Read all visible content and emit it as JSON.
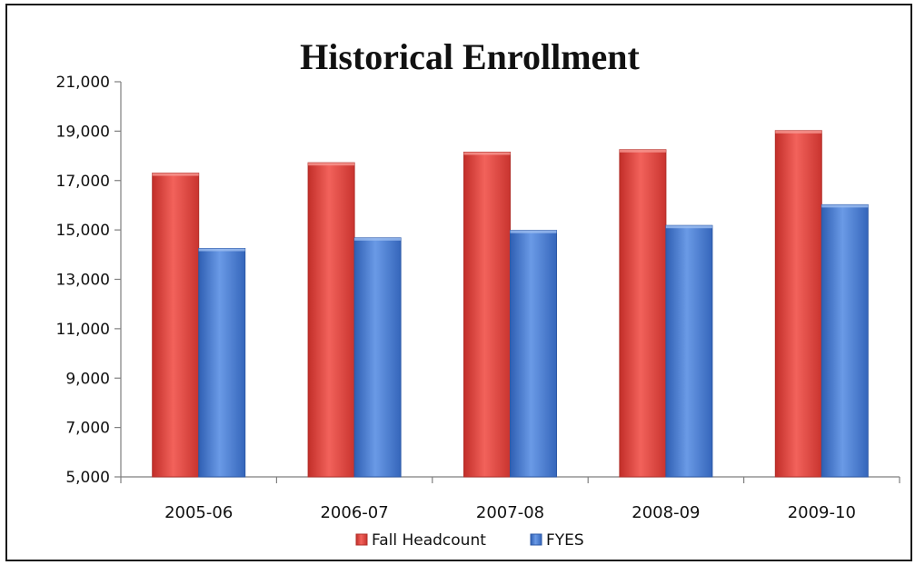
{
  "chart_data": {
    "type": "bar",
    "title": "Historical Enrollment",
    "xlabel": "",
    "ylabel": "",
    "categories": [
      "2005-06",
      "2006-07",
      "2007-08",
      "2008-09",
      "2009-10"
    ],
    "series": [
      {
        "name": "Fall Headcount",
        "color": "#e8463f",
        "values": [
          17300,
          17720,
          18150,
          18250,
          19020
        ]
      },
      {
        "name": "FYES",
        "color": "#4a7fd6",
        "values": [
          14250,
          14680,
          14980,
          15180,
          16020
        ]
      }
    ],
    "ylim": [
      5000,
      21000
    ],
    "yticks": [
      "5,000",
      "7,000",
      "9,000",
      "11,000",
      "13,000",
      "15,000",
      "17,000",
      "19,000",
      "21,000"
    ],
    "grid": false,
    "legend": "bottom"
  }
}
